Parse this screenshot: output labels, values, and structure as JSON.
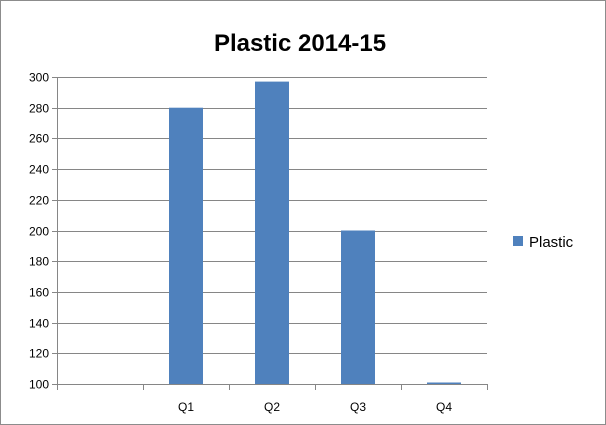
{
  "chart_data": {
    "type": "bar",
    "title": "Plastic 2014-15",
    "categories": [
      "",
      "Q1",
      "Q2",
      "Q3",
      "Q4"
    ],
    "series": [
      {
        "name": "Plastic",
        "values": [
          null,
          280,
          297,
          200,
          99
        ]
      }
    ],
    "ylim": [
      100,
      300
    ],
    "yticks": [
      100,
      120,
      140,
      160,
      180,
      200,
      220,
      240,
      260,
      280,
      300
    ],
    "grid": true,
    "legend_position": "right",
    "colors": {
      "bar": "#4f81bd",
      "grid": "#868686",
      "axis": "#868686"
    }
  }
}
